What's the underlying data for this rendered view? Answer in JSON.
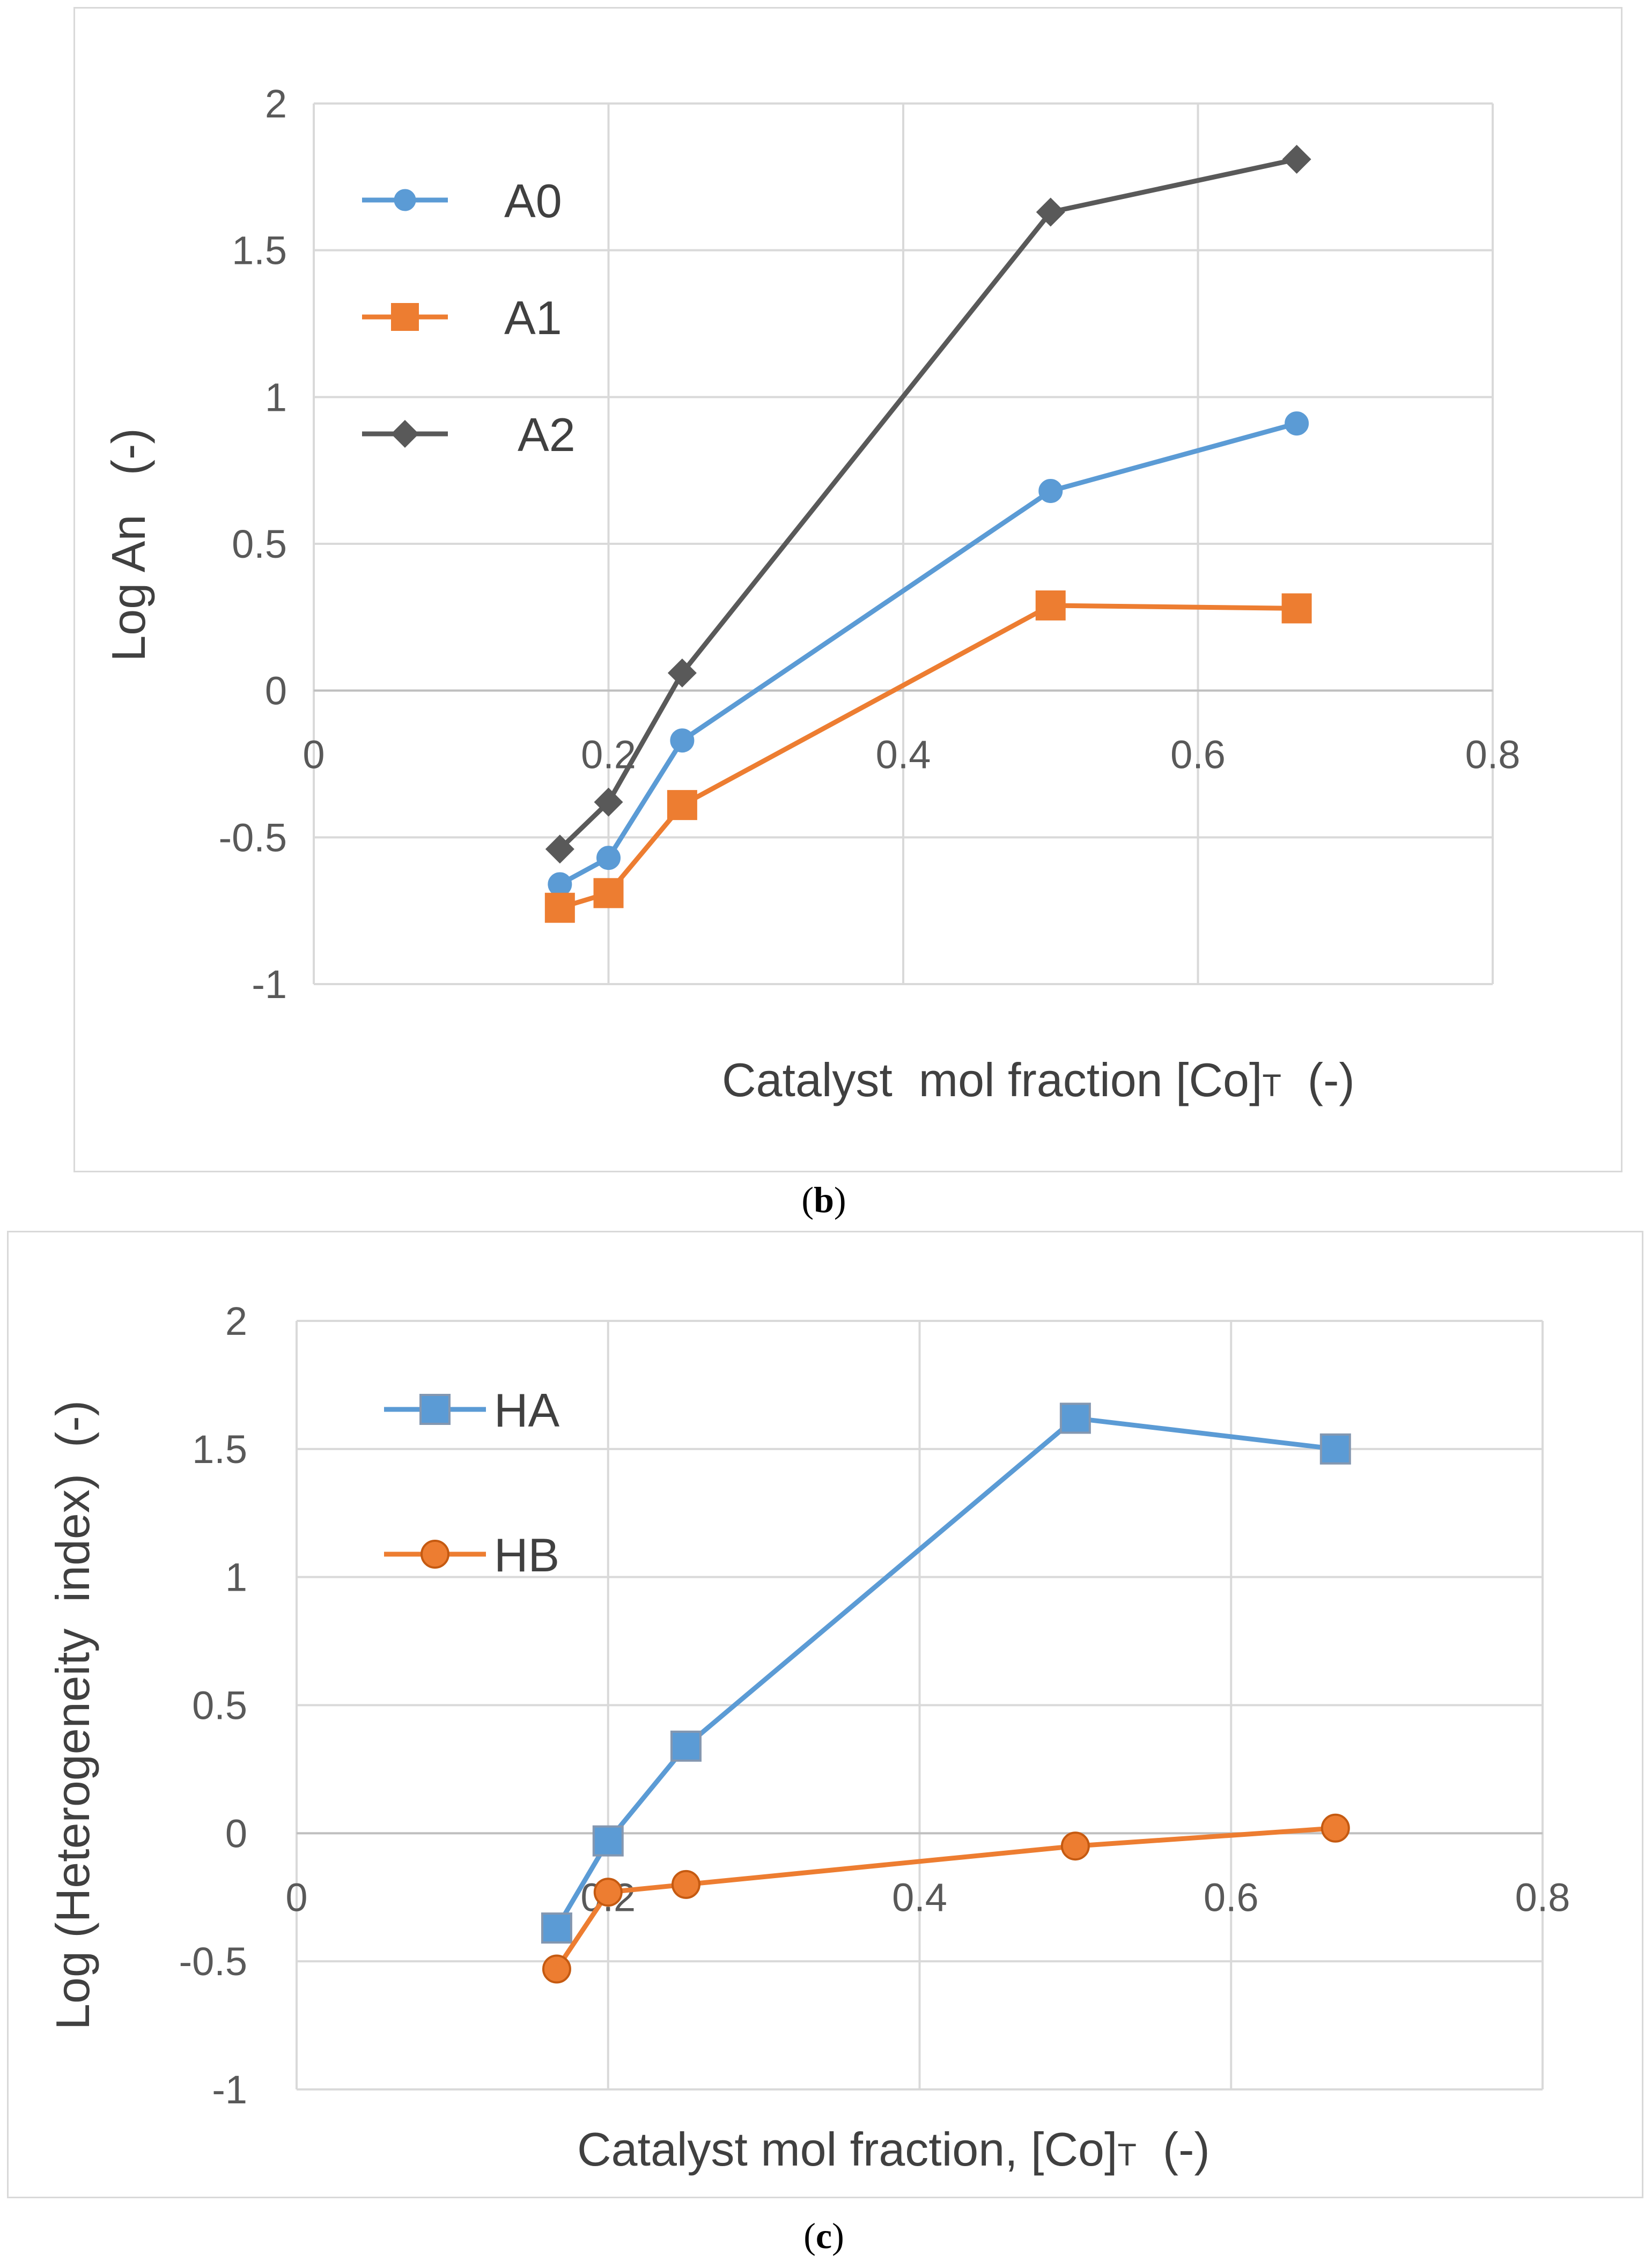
{
  "chart_data": [
    {
      "id": "b",
      "type": "line",
      "caption_open": "(",
      "caption_letter": "b",
      "caption_close": ")",
      "xlabel": "Catalyst  mol fraction [Co]",
      "xlabel_sub": "T",
      "xlabel_units": "  (-)",
      "ylabel": "Log An   (-)",
      "xlim": [
        0,
        0.8
      ],
      "ylim": [
        -1,
        2
      ],
      "x_ticks": [
        0,
        0.2,
        0.4,
        0.6,
        0.8
      ],
      "x_tick_labels": [
        "0",
        "0.2",
        "0.4",
        "0.6",
        "0.8"
      ],
      "y_ticks": [
        -1,
        -0.5,
        0,
        0.5,
        1,
        1.5,
        2
      ],
      "y_tick_labels": [
        "-1",
        "-0.5",
        "0",
        "0.5",
        "1",
        "1.5",
        "2"
      ],
      "grid": true,
      "legend_position": "top-left",
      "x": [
        0.167,
        0.2,
        0.25,
        0.5,
        0.667
      ],
      "series": [
        {
          "name": "A0",
          "color": "#5b9bd5",
          "marker": "circle",
          "values": [
            -0.66,
            -0.57,
            -0.17,
            0.68,
            0.91
          ]
        },
        {
          "name": "A1",
          "color": "#ed7d31",
          "marker": "square",
          "values": [
            -0.74,
            -0.69,
            -0.39,
            0.29,
            0.28
          ]
        },
        {
          "name": "A2",
          "color": "#595959",
          "marker": "diamond",
          "values": [
            -0.54,
            -0.38,
            0.06,
            1.63,
            1.81
          ]
        }
      ]
    },
    {
      "id": "c",
      "type": "line",
      "caption_open": "(",
      "caption_letter": "c",
      "caption_close": ")",
      "xlabel": "Catalyst mol fraction, [Co]",
      "xlabel_sub": "T",
      "xlabel_units": "  (-)",
      "ylabel": "Log (Heterogeneity  index)  (-)",
      "xlim": [
        0,
        0.8
      ],
      "ylim": [
        -1,
        2
      ],
      "x_ticks": [
        0,
        0.2,
        0.4,
        0.6,
        0.8
      ],
      "x_tick_labels": [
        "0",
        "0.2",
        "0.4",
        "0.6",
        "0.8"
      ],
      "y_ticks": [
        -1,
        -0.5,
        0,
        0.5,
        1,
        1.5,
        2
      ],
      "y_tick_labels": [
        "-1",
        "-0.5",
        "0",
        "0.5",
        "1",
        "1.5",
        "2"
      ],
      "grid": true,
      "legend_position": "top-left",
      "x": [
        0.167,
        0.2,
        0.25,
        0.5,
        0.667
      ],
      "series": [
        {
          "name": "HA",
          "color": "#5b9bd5",
          "marker": "square",
          "values": [
            -0.37,
            -0.03,
            0.34,
            1.62,
            1.5
          ]
        },
        {
          "name": "HB",
          "color": "#ed7d31",
          "marker": "circle",
          "values": [
            -0.53,
            -0.23,
            -0.2,
            -0.05,
            0.02
          ]
        }
      ]
    }
  ]
}
